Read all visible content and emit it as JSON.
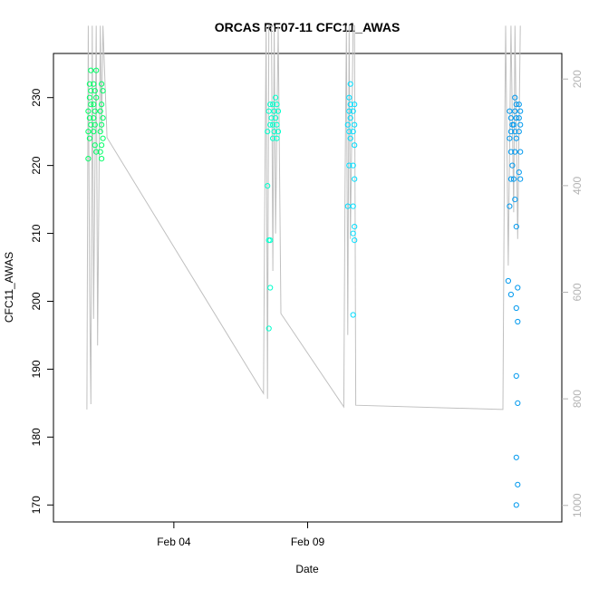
{
  "chart_data": {
    "type": "scatter",
    "title": "ORCAS RF07-11 CFC11_AWAS",
    "xlabel": "Date",
    "ylabel": "CFC11_AWAS",
    "x_ticks": [
      {
        "label": "Feb 04",
        "value": 4
      },
      {
        "label": "Feb 09",
        "value": 9
      }
    ],
    "xlim": [
      -0.5,
      18.5
    ],
    "ylim": [
      167.5,
      236.5
    ],
    "y_ticks": [
      170,
      180,
      190,
      200,
      210,
      220,
      230
    ],
    "y2_ticks": [
      200,
      400,
      600,
      800,
      1000
    ],
    "y2lim": [
      1031,
      152
    ],
    "series": [
      {
        "color": "#00ff66",
        "points": [
          [
            0.8,
            221
          ],
          [
            0.85,
            224
          ],
          [
            0.8,
            225
          ],
          [
            0.9,
            226
          ],
          [
            0.85,
            227
          ],
          [
            0.8,
            228
          ],
          [
            0.9,
            229
          ],
          [
            0.85,
            230
          ],
          [
            0.9,
            231
          ],
          [
            0.85,
            232
          ],
          [
            0.9,
            234
          ],
          [
            1.0,
            225
          ],
          [
            1.05,
            226
          ],
          [
            1.0,
            227
          ],
          [
            1.05,
            228
          ],
          [
            1.0,
            229
          ],
          [
            1.1,
            230
          ],
          [
            1.05,
            231
          ],
          [
            1.0,
            232
          ],
          [
            1.1,
            234
          ],
          [
            1.05,
            223
          ],
          [
            1.1,
            222
          ],
          [
            1.3,
            221
          ],
          [
            1.25,
            222
          ],
          [
            1.3,
            223
          ],
          [
            1.35,
            224
          ],
          [
            1.25,
            225
          ],
          [
            1.3,
            226
          ],
          [
            1.35,
            227
          ],
          [
            1.25,
            228
          ],
          [
            1.3,
            229
          ],
          [
            1.35,
            231
          ],
          [
            1.3,
            232
          ]
        ]
      },
      {
        "color": "#00ffcc",
        "points": [
          [
            7.5,
            217
          ],
          [
            7.55,
            209
          ],
          [
            7.6,
            202
          ],
          [
            7.55,
            196
          ],
          [
            7.6,
            209
          ],
          [
            7.5,
            225
          ],
          [
            7.6,
            226
          ],
          [
            7.65,
            227
          ],
          [
            7.55,
            228
          ],
          [
            7.6,
            229
          ],
          [
            7.7,
            224
          ],
          [
            7.75,
            225
          ],
          [
            7.7,
            226
          ],
          [
            7.8,
            227
          ],
          [
            7.75,
            228
          ],
          [
            7.7,
            229
          ],
          [
            7.8,
            230
          ],
          [
            7.85,
            224
          ],
          [
            7.9,
            225
          ],
          [
            7.85,
            226
          ],
          [
            7.9,
            228
          ],
          [
            7.85,
            229
          ]
        ]
      },
      {
        "color": "#00ddff",
        "points": [
          [
            10.5,
            214
          ],
          [
            10.55,
            220
          ],
          [
            10.6,
            224
          ],
          [
            10.55,
            225
          ],
          [
            10.5,
            226
          ],
          [
            10.6,
            227
          ],
          [
            10.55,
            228
          ],
          [
            10.6,
            229
          ],
          [
            10.55,
            230
          ],
          [
            10.6,
            232
          ],
          [
            10.7,
            198
          ],
          [
            10.75,
            209
          ],
          [
            10.7,
            210
          ],
          [
            10.75,
            211
          ],
          [
            10.7,
            214
          ],
          [
            10.75,
            218
          ],
          [
            10.7,
            220
          ],
          [
            10.75,
            223
          ],
          [
            10.7,
            225
          ],
          [
            10.75,
            226
          ],
          [
            10.7,
            228
          ],
          [
            10.75,
            229
          ]
        ]
      },
      {
        "color": "#0099ee",
        "points": [
          [
            16.5,
            203
          ],
          [
            16.6,
            201
          ],
          [
            16.55,
            214
          ],
          [
            16.6,
            218
          ],
          [
            16.65,
            220
          ],
          [
            16.6,
            222
          ],
          [
            16.55,
            224
          ],
          [
            16.6,
            225
          ],
          [
            16.65,
            226
          ],
          [
            16.6,
            227
          ],
          [
            16.55,
            228
          ],
          [
            16.8,
            170
          ],
          [
            16.85,
            173
          ],
          [
            16.8,
            177
          ],
          [
            16.85,
            185
          ],
          [
            16.8,
            189
          ],
          [
            16.85,
            197
          ],
          [
            16.8,
            199
          ],
          [
            16.85,
            202
          ],
          [
            16.8,
            211
          ],
          [
            16.75,
            215
          ],
          [
            16.7,
            218
          ],
          [
            16.75,
            222
          ],
          [
            16.8,
            224
          ],
          [
            16.75,
            225
          ],
          [
            16.7,
            226
          ],
          [
            16.8,
            227
          ],
          [
            16.75,
            228
          ],
          [
            16.8,
            229
          ],
          [
            16.75,
            230
          ],
          [
            16.95,
            218
          ],
          [
            16.9,
            219
          ],
          [
            16.95,
            222
          ],
          [
            16.9,
            225
          ],
          [
            16.95,
            226
          ],
          [
            16.9,
            227
          ],
          [
            16.95,
            228
          ],
          [
            16.9,
            229
          ]
        ]
      }
    ],
    "reference_line": {
      "color": "#c0c0c0",
      "axis": "y2",
      "points": [
        [
          0.75,
          820
        ],
        [
          0.8,
          100
        ],
        [
          0.85,
          600
        ],
        [
          0.9,
          810
        ],
        [
          0.95,
          100
        ],
        [
          1.0,
          650
        ],
        [
          1.1,
          100
        ],
        [
          1.15,
          700
        ],
        [
          1.25,
          100
        ],
        [
          1.3,
          300
        ],
        [
          1.35,
          100
        ],
        [
          1.5,
          310
        ],
        [
          7.35,
          790
        ],
        [
          7.4,
          400
        ],
        [
          7.45,
          100
        ],
        [
          7.5,
          800
        ],
        [
          7.55,
          100
        ],
        [
          7.65,
          100
        ],
        [
          7.7,
          560
        ],
        [
          7.75,
          100
        ],
        [
          7.8,
          490
        ],
        [
          7.9,
          100
        ],
        [
          8.0,
          640
        ],
        [
          10.35,
          815
        ],
        [
          10.4,
          400
        ],
        [
          10.45,
          100
        ],
        [
          10.5,
          680
        ],
        [
          10.55,
          100
        ],
        [
          10.6,
          500
        ],
        [
          10.65,
          300
        ],
        [
          10.7,
          100
        ],
        [
          10.75,
          100
        ],
        [
          10.8,
          812
        ],
        [
          16.3,
          820
        ],
        [
          16.35,
          400
        ],
        [
          16.4,
          100
        ],
        [
          16.5,
          550
        ],
        [
          16.6,
          100
        ],
        [
          16.7,
          450
        ],
        [
          16.75,
          100
        ],
        [
          16.85,
          500
        ],
        [
          16.95,
          100
        ]
      ]
    },
    "grid": false
  }
}
